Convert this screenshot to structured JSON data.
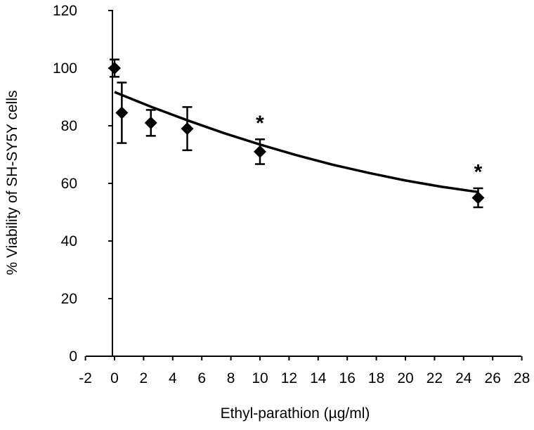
{
  "chart_data": {
    "type": "scatter",
    "xlabel": "Ethyl-parathion (µg/ml)",
    "ylabel": "%  Viability of SH-SY5Y cells",
    "xlim": [
      -2,
      28
    ],
    "ylim": [
      0,
      120
    ],
    "xticks": [
      "-2",
      "0",
      "2",
      "4",
      "6",
      "8",
      "10",
      "12",
      "14",
      "16",
      "18",
      "20",
      "22",
      "24",
      "26",
      "28"
    ],
    "yticks": [
      "0",
      "20",
      "40",
      "60",
      "80",
      "100",
      "120"
    ],
    "grid": false,
    "marker": "diamond",
    "points": [
      {
        "x": 0,
        "y": 100,
        "err": 3
      },
      {
        "x": 0.5,
        "y": 84.5,
        "err": 10.5
      },
      {
        "x": 2.5,
        "y": 81,
        "err": 4.5
      },
      {
        "x": 5,
        "y": 79,
        "err": 7.5
      },
      {
        "x": 10,
        "y": 71,
        "err": 4.3
      },
      {
        "x": 25,
        "y": 55,
        "err": 3.3
      }
    ],
    "trendline": {
      "kind": "polynomial",
      "x": [
        0,
        2.5,
        5,
        7.5,
        10,
        12.5,
        15,
        17.5,
        20,
        22.5,
        25
      ],
      "y": [
        91.7,
        86.6,
        81.9,
        77.5,
        73.5,
        69.8,
        66.5,
        63.6,
        61.0,
        58.8,
        57.0
      ]
    },
    "annotations": [
      {
        "text": "*",
        "x": 10,
        "y": 82
      },
      {
        "text": "*",
        "x": 25,
        "y": 65
      }
    ]
  }
}
